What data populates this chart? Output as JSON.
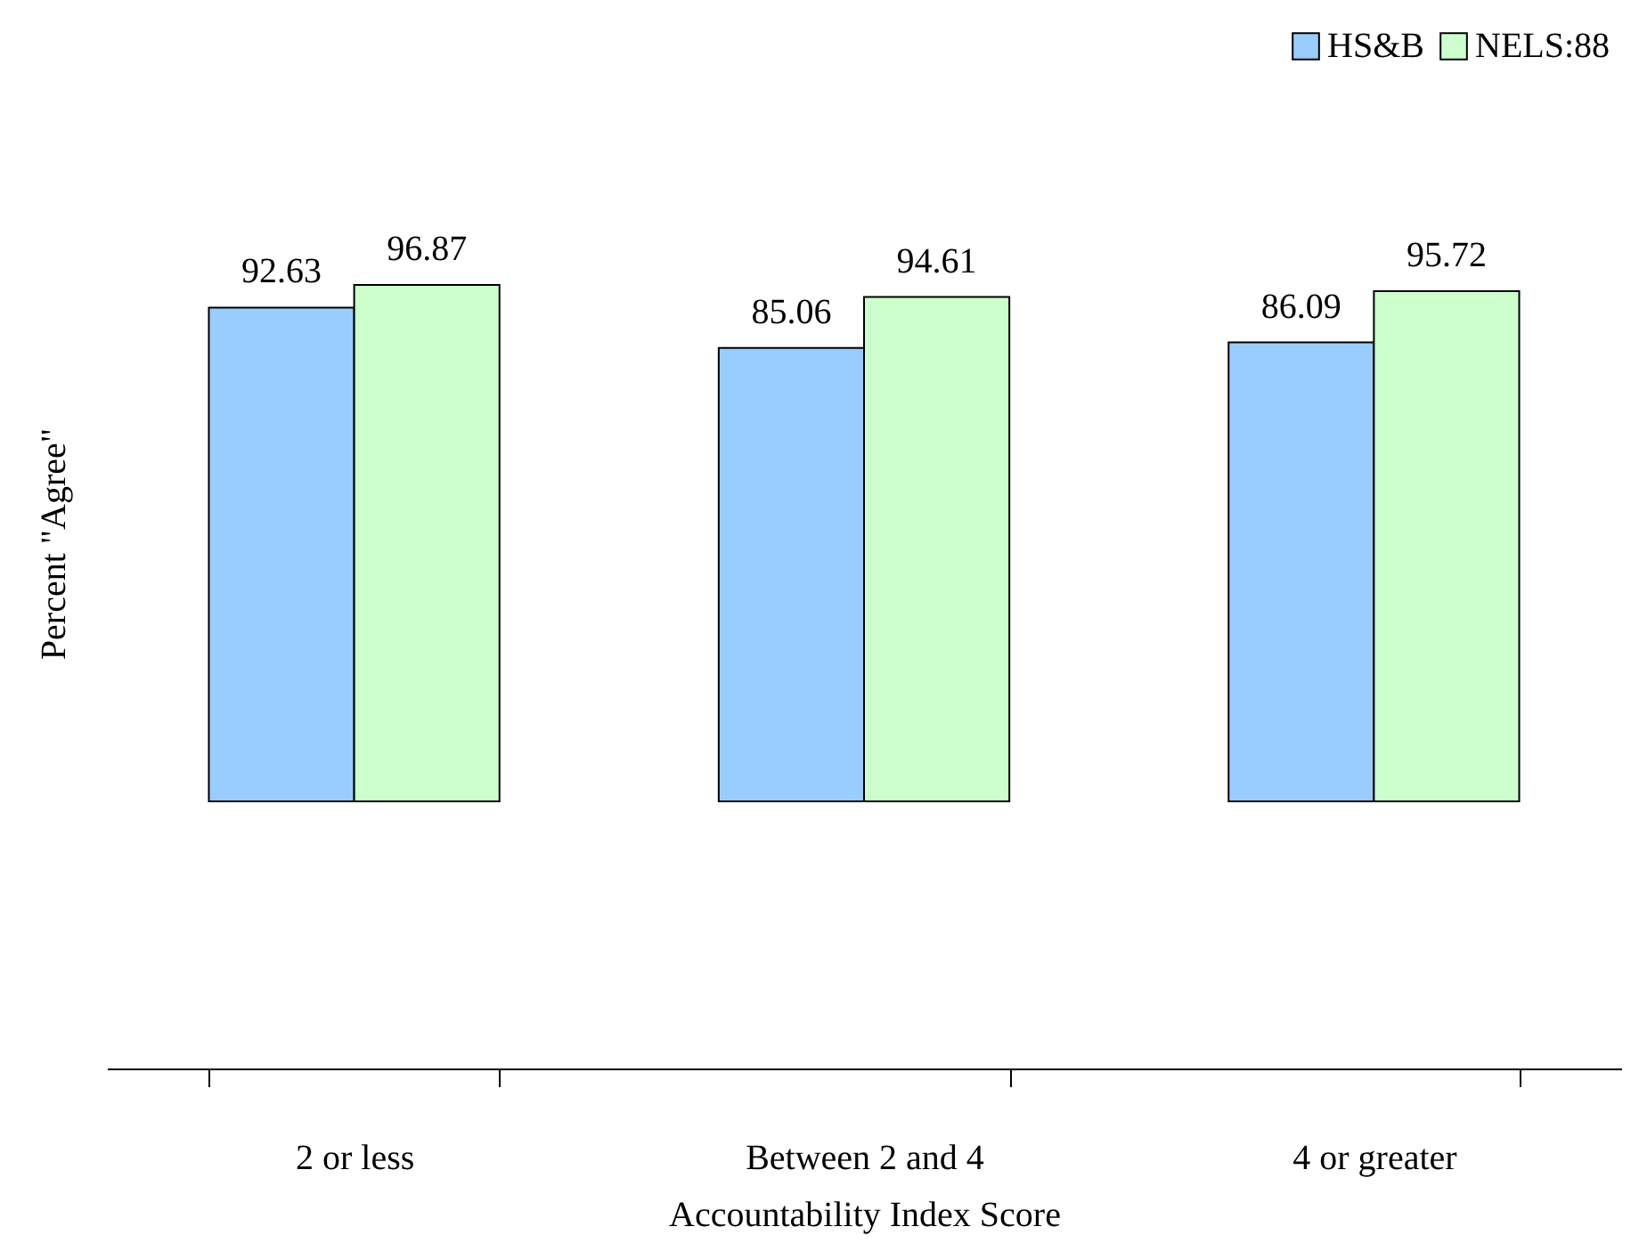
{
  "chart_data": {
    "type": "bar",
    "xlabel": "Accountability Index Score",
    "ylabel": "Percent \"Agree\"",
    "categories": [
      "2 or less",
      "Between 2 and 4",
      "4 or greater"
    ],
    "series": [
      {
        "name": "HS&B",
        "color": "#99ccff",
        "values": [
          92.63,
          85.06,
          86.09
        ]
      },
      {
        "name": "NELS:88",
        "color": "#ccffcc",
        "values": [
          96.87,
          94.61,
          95.72
        ]
      }
    ],
    "data_labels": true,
    "legend": "top right",
    "tick_labels": "x",
    "grid": false
  }
}
